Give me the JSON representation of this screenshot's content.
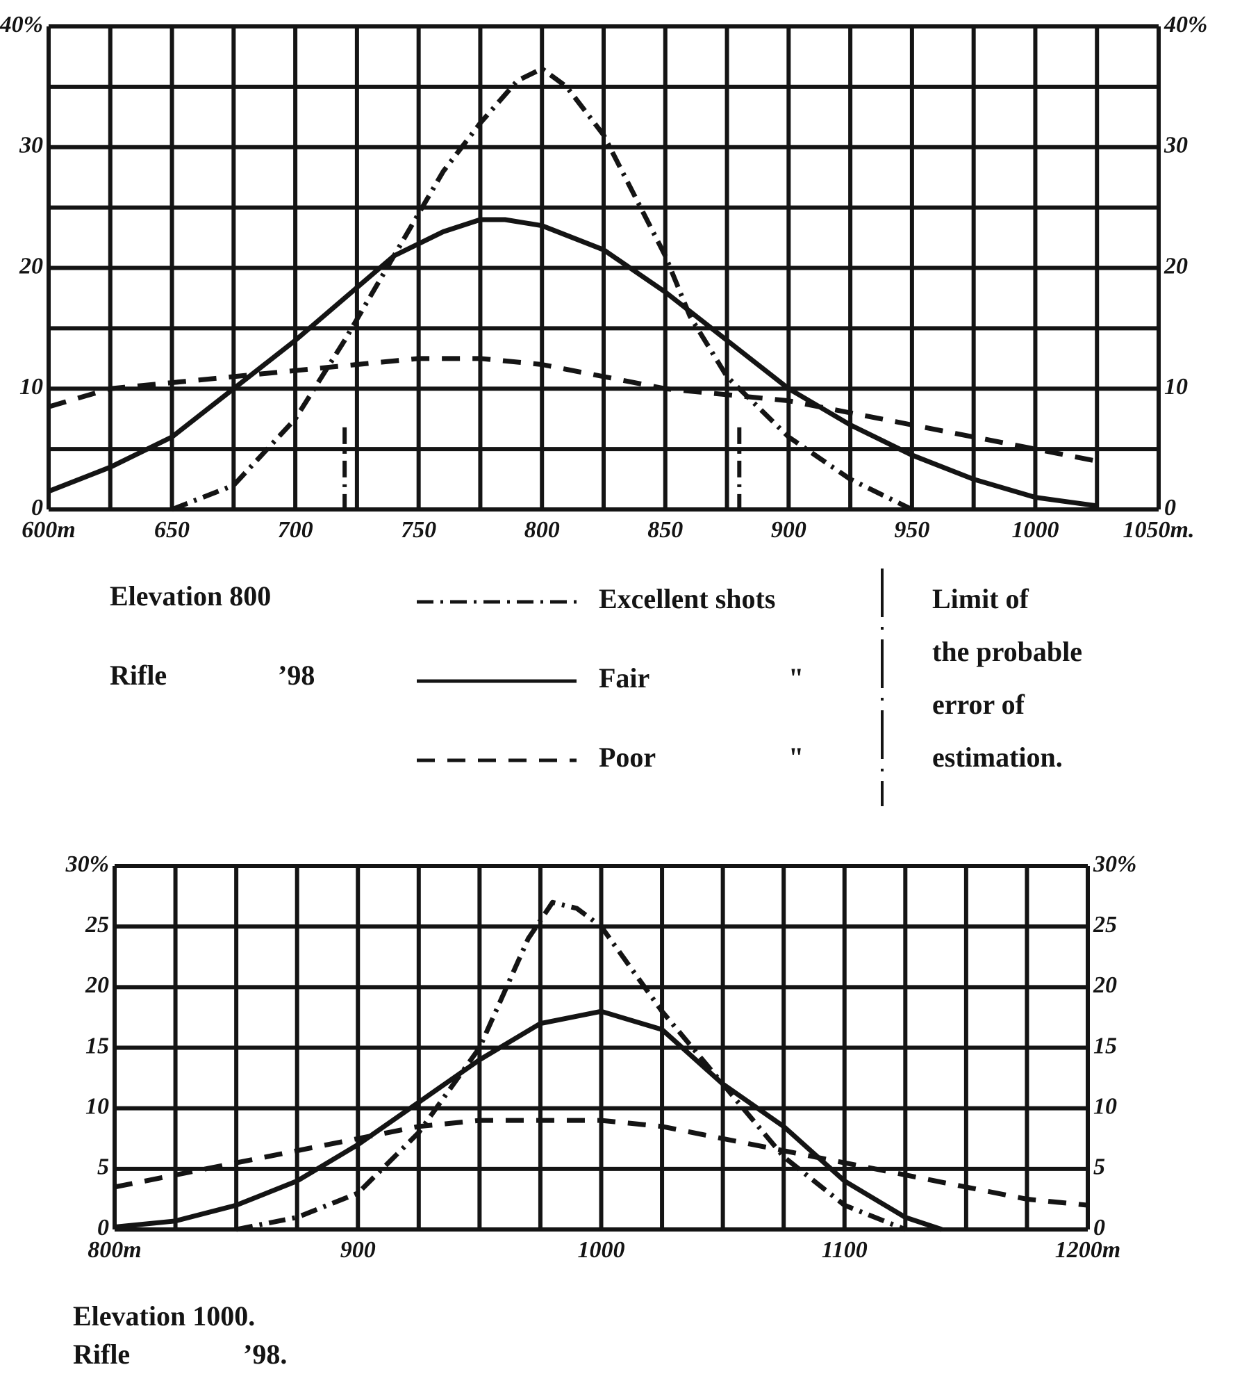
{
  "chart_data": [
    {
      "type": "line",
      "color": "#141414",
      "caption": [
        "Elevation 800",
        "Rifle",
        "’98"
      ],
      "ditto": "\"",
      "annotation": [
        "Limit of",
        "the probable",
        "error of",
        "estimation."
      ],
      "limits": [
        720,
        880
      ],
      "xlim": [
        600,
        1050
      ],
      "ylim": [
        0,
        40
      ],
      "xticks": [
        {
          "value": 600,
          "label": "600m"
        },
        650,
        700,
        750,
        800,
        850,
        900,
        950,
        1000,
        {
          "value": 1050,
          "label": "1050m."
        }
      ],
      "yticks": [
        0,
        10,
        20,
        30,
        {
          "value": 40,
          "label": "40%"
        }
      ],
      "xgrid": [
        600,
        625,
        650,
        675,
        700,
        725,
        750,
        775,
        800,
        825,
        850,
        875,
        900,
        925,
        950,
        975,
        1000,
        1025,
        1050
      ],
      "ygrid": [
        0,
        5,
        10,
        15,
        20,
        25,
        30,
        35,
        40
      ],
      "series": [
        {
          "name": "Excellent shots",
          "dash": "dash-dot",
          "x": [
            650,
            675,
            700,
            720,
            740,
            760,
            775,
            790,
            800,
            810,
            825,
            840,
            850,
            860,
            875,
            900,
            925,
            950
          ],
          "values": [
            0,
            2,
            7.5,
            14,
            21,
            28,
            32,
            35.5,
            36.5,
            35,
            31,
            25,
            21,
            16,
            11,
            6,
            2.5,
            0
          ]
        },
        {
          "name": "Fair",
          "dash": "solid",
          "x": [
            600,
            625,
            650,
            675,
            700,
            720,
            740,
            760,
            775,
            785,
            800,
            825,
            850,
            875,
            900,
            925,
            950,
            975,
            1000,
            1025
          ],
          "values": [
            1.5,
            3.5,
            6,
            10,
            14,
            17.5,
            21,
            23,
            24,
            24,
            23.5,
            21.5,
            18,
            14,
            10,
            7,
            4.5,
            2.5,
            1,
            0.3
          ]
        },
        {
          "name": "Poor",
          "dash": "dashed",
          "x": [
            600,
            625,
            650,
            675,
            700,
            725,
            750,
            775,
            800,
            825,
            850,
            875,
            900,
            925,
            950,
            975,
            1000,
            1025
          ],
          "values": [
            8.5,
            10,
            10.5,
            11,
            11.5,
            12,
            12.5,
            12.5,
            12,
            11,
            10,
            9.5,
            9,
            8,
            7,
            6,
            5,
            4
          ]
        }
      ]
    },
    {
      "type": "line",
      "color": "#141414",
      "caption": [
        "Elevation 1000.",
        "Rifle",
        "’98."
      ],
      "xlim": [
        800,
        1200
      ],
      "ylim": [
        0,
        30
      ],
      "xticks": [
        {
          "value": 800,
          "label": "800m"
        },
        900,
        1000,
        1100,
        {
          "value": 1200,
          "label": "1200m"
        }
      ],
      "yticks": [
        0,
        5,
        10,
        15,
        20,
        25,
        {
          "value": 30,
          "label": "30%"
        }
      ],
      "xgrid": [
        800,
        825,
        850,
        875,
        900,
        925,
        950,
        975,
        1000,
        1025,
        1050,
        1075,
        1100,
        1125,
        1150,
        1175,
        1200
      ],
      "ygrid": [
        0,
        5,
        10,
        15,
        20,
        25,
        30
      ],
      "series": [
        {
          "name": "Excellent shots",
          "dash": "dash-dot",
          "x": [
            850,
            875,
            900,
            925,
            950,
            970,
            980,
            990,
            1000,
            1025,
            1050,
            1075,
            1100,
            1125
          ],
          "values": [
            0,
            1,
            3,
            8,
            15,
            24,
            27,
            26.5,
            25,
            18,
            12,
            6,
            2,
            0
          ]
        },
        {
          "name": "Fair",
          "dash": "solid",
          "x": [
            800,
            825,
            850,
            875,
            900,
            925,
            950,
            975,
            1000,
            1025,
            1050,
            1075,
            1100,
            1125,
            1140
          ],
          "values": [
            0.2,
            0.7,
            2,
            4,
            7,
            10.5,
            14,
            17,
            18,
            16.5,
            12,
            8.5,
            4,
            1,
            0
          ]
        },
        {
          "name": "Poor",
          "dash": "dashed",
          "x": [
            800,
            825,
            850,
            875,
            900,
            925,
            950,
            975,
            1000,
            1025,
            1050,
            1075,
            1100,
            1125,
            1150,
            1175,
            1200
          ],
          "values": [
            3.5,
            4.5,
            5.5,
            6.5,
            7.5,
            8.5,
            9,
            9,
            9,
            8.5,
            7.5,
            6.5,
            5.5,
            4.5,
            3.5,
            2.5,
            2
          ]
        }
      ]
    }
  ]
}
